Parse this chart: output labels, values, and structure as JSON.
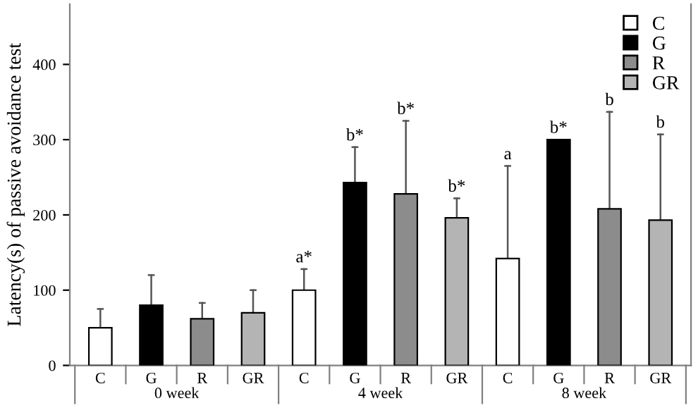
{
  "chart_data": {
    "type": "bar",
    "ylabel": "Latency(s) of passive avoidance test",
    "categories": [
      "C",
      "G",
      "R",
      "GR",
      "C",
      "G",
      "R",
      "GR",
      "C",
      "G",
      "R",
      "GR"
    ],
    "series": [
      {
        "name": "C",
        "color": "#ffffff",
        "values": [
          50,
          null,
          null,
          null,
          100,
          null,
          null,
          null,
          142,
          null,
          null,
          null
        ],
        "errors": [
          [
            50,
            75
          ],
          null,
          null,
          null,
          [
            100,
            128
          ],
          null,
          null,
          null,
          [
            142,
            265
          ],
          null,
          null,
          null
        ]
      },
      {
        "name": "G",
        "color": "#000000",
        "values": [
          null,
          80,
          null,
          null,
          null,
          243,
          null,
          null,
          null,
          300,
          null,
          null
        ],
        "errors": [
          null,
          [
            80,
            120
          ],
          null,
          null,
          null,
          [
            243,
            290
          ],
          null,
          null,
          null,
          null,
          null,
          null
        ]
      },
      {
        "name": "R",
        "color": "#8c8c8c",
        "values": [
          null,
          null,
          62,
          null,
          null,
          null,
          228,
          null,
          null,
          null,
          208,
          null
        ],
        "errors": [
          null,
          null,
          [
            62,
            83
          ],
          null,
          null,
          null,
          [
            228,
            325
          ],
          null,
          null,
          null,
          [
            208,
            337
          ],
          null
        ]
      },
      {
        "name": "GR",
        "color": "#b4b4b4",
        "values": [
          null,
          null,
          null,
          70,
          null,
          null,
          null,
          196,
          null,
          null,
          null,
          193
        ],
        "errors": [
          null,
          null,
          null,
          [
            70,
            100
          ],
          null,
          null,
          null,
          [
            196,
            222
          ],
          null,
          null,
          null,
          [
            193,
            307
          ]
        ]
      }
    ],
    "ylim": [
      0,
      480
    ],
    "yticks": [
      0,
      100,
      200,
      300,
      400
    ],
    "legend": "top right",
    "grid": false,
    "annotations": [
      "0 week",
      "4 week",
      "8 week",
      "a*",
      "b*",
      "b*",
      "b*",
      "a",
      "b*",
      "b",
      "b"
    ]
  }
}
